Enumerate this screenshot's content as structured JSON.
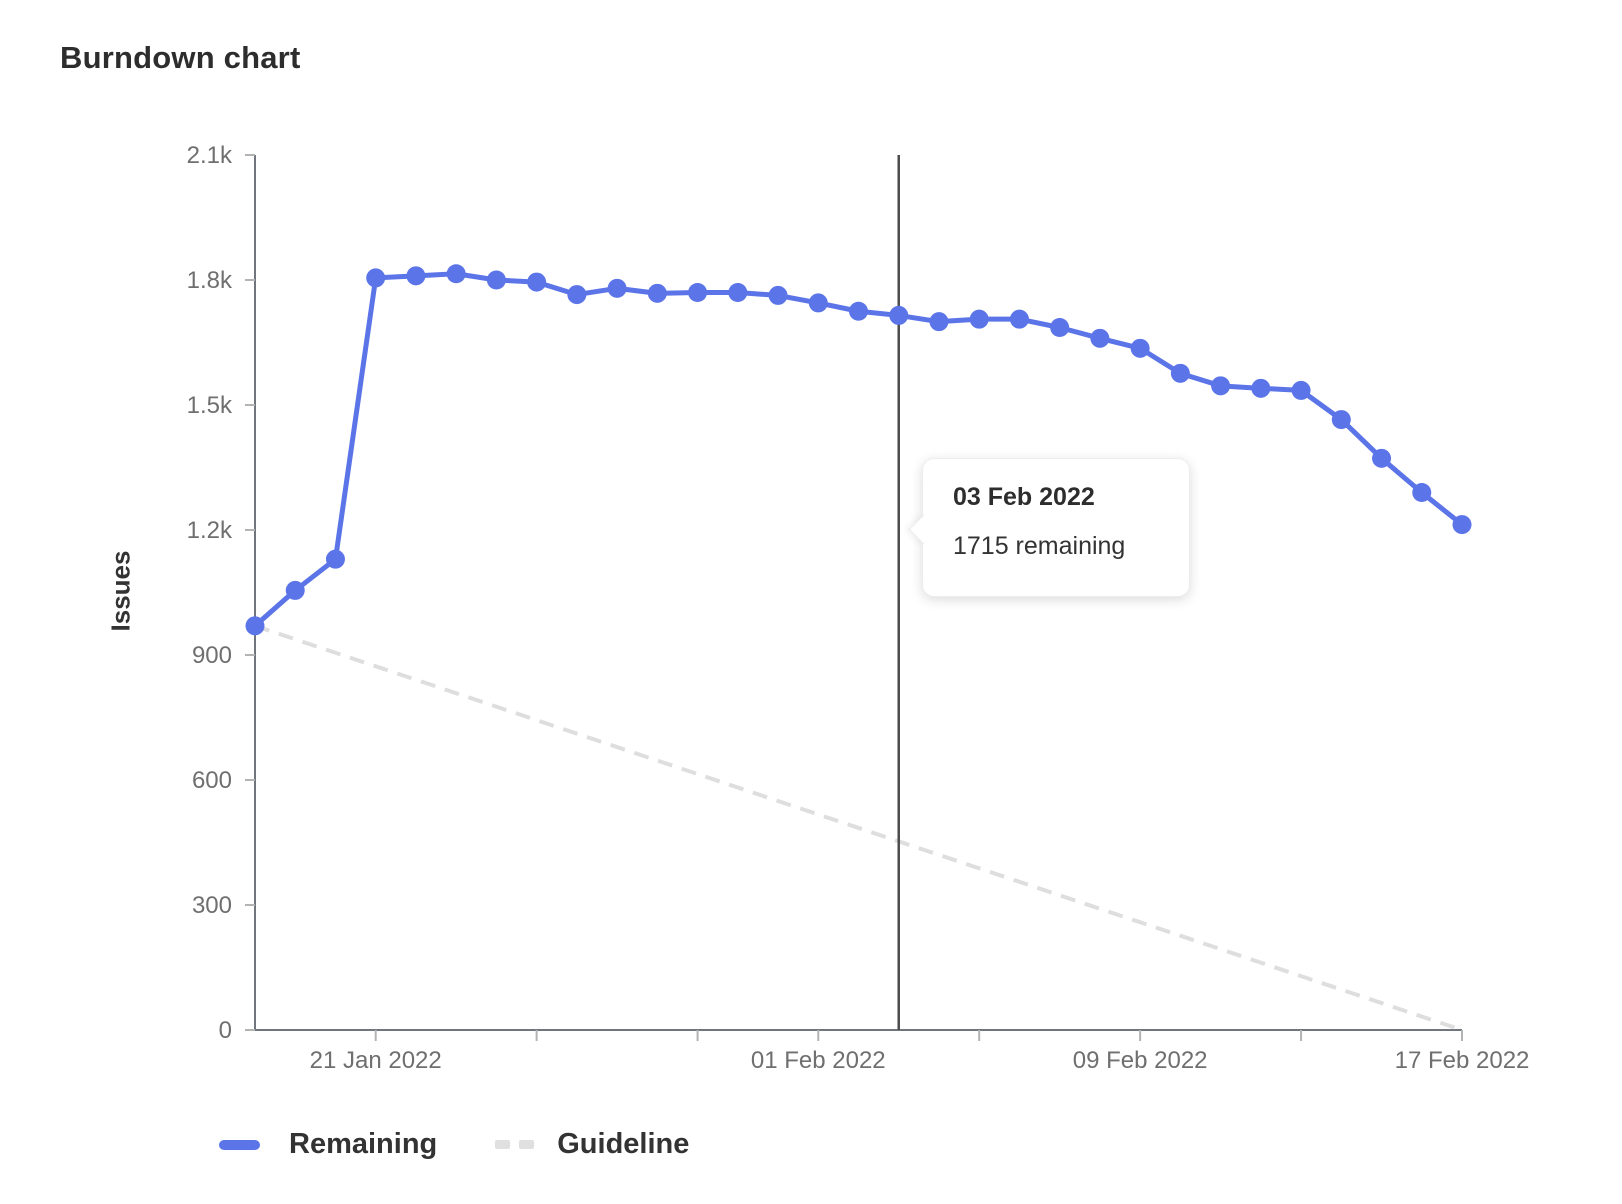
{
  "page": {
    "title": "Burndown chart"
  },
  "colors": {
    "remaining": "#5b74e8",
    "guideline": "#dedede",
    "legend_dash": "#e0e0e0",
    "axis_line": "#71757d",
    "tick_mark": "#b3b3b3",
    "tick_label": "#6f6f6f",
    "marker_line": "#4c4c4c",
    "heading_text": "#2d2d2d"
  },
  "y_axis": {
    "label": "Issues",
    "ticks": [
      {
        "value": 0,
        "label": "0"
      },
      {
        "value": 300,
        "label": "300"
      },
      {
        "value": 600,
        "label": "600"
      },
      {
        "value": 900,
        "label": "900"
      },
      {
        "value": 1200,
        "label": "1.2k"
      },
      {
        "value": 1500,
        "label": "1.5k"
      },
      {
        "value": 1800,
        "label": "1.8k"
      },
      {
        "value": 2100,
        "label": "2.1k"
      }
    ]
  },
  "x_axis": {
    "labeled_ticks": [
      {
        "day": 3,
        "label": "21 Jan 2022"
      },
      {
        "day": 14,
        "label": "01 Feb 2022"
      },
      {
        "day": 22,
        "label": "09 Feb 2022"
      },
      {
        "day": 30,
        "label": "17 Feb 2022"
      }
    ],
    "minor_tick_days": [
      7,
      11,
      18,
      26
    ]
  },
  "chart_data": {
    "type": "line",
    "title": "Burndown chart",
    "xlabel": "",
    "ylabel": "Issues",
    "ylim": [
      0,
      2100
    ],
    "x_range": [
      "18 Jan 2022",
      "17 Feb 2022"
    ],
    "grid": false,
    "legend_position": "bottom",
    "series": [
      {
        "name": "Remaining",
        "style": "solid",
        "markers": true,
        "points": [
          {
            "day": 0,
            "date": "18 Jan 2022",
            "value": 970
          },
          {
            "day": 1,
            "date": "19 Jan 2022",
            "value": 1055
          },
          {
            "day": 2,
            "date": "20 Jan 2022",
            "value": 1130
          },
          {
            "day": 3,
            "date": "21 Jan 2022",
            "value": 1805
          },
          {
            "day": 4,
            "date": "22 Jan 2022",
            "value": 1810
          },
          {
            "day": 5,
            "date": "23 Jan 2022",
            "value": 1815
          },
          {
            "day": 6,
            "date": "24 Jan 2022",
            "value": 1800
          },
          {
            "day": 7,
            "date": "25 Jan 2022",
            "value": 1795
          },
          {
            "day": 8,
            "date": "26 Jan 2022",
            "value": 1765
          },
          {
            "day": 9,
            "date": "27 Jan 2022",
            "value": 1780
          },
          {
            "day": 10,
            "date": "28 Jan 2022",
            "value": 1768
          },
          {
            "day": 11,
            "date": "29 Jan 2022",
            "value": 1770
          },
          {
            "day": 12,
            "date": "30 Jan 2022",
            "value": 1770
          },
          {
            "day": 13,
            "date": "31 Jan 2022",
            "value": 1763
          },
          {
            "day": 14,
            "date": "01 Feb 2022",
            "value": 1745
          },
          {
            "day": 15,
            "date": "02 Feb 2022",
            "value": 1725
          },
          {
            "day": 16,
            "date": "03 Feb 2022",
            "value": 1715
          },
          {
            "day": 17,
            "date": "04 Feb 2022",
            "value": 1700
          },
          {
            "day": 18,
            "date": "05 Feb 2022",
            "value": 1706
          },
          {
            "day": 19,
            "date": "06 Feb 2022",
            "value": 1706
          },
          {
            "day": 20,
            "date": "07 Feb 2022",
            "value": 1686
          },
          {
            "day": 21,
            "date": "08 Feb 2022",
            "value": 1660
          },
          {
            "day": 22,
            "date": "09 Feb 2022",
            "value": 1636
          },
          {
            "day": 23,
            "date": "10 Feb 2022",
            "value": 1576
          },
          {
            "day": 24,
            "date": "11 Feb 2022",
            "value": 1546
          },
          {
            "day": 25,
            "date": "12 Feb 2022",
            "value": 1540
          },
          {
            "day": 26,
            "date": "13 Feb 2022",
            "value": 1535
          },
          {
            "day": 27,
            "date": "14 Feb 2022",
            "value": 1465
          },
          {
            "day": 28,
            "date": "15 Feb 2022",
            "value": 1372
          },
          {
            "day": 29,
            "date": "16 Feb 2022",
            "value": 1290
          },
          {
            "day": 30,
            "date": "17 Feb 2022",
            "value": 1213
          }
        ]
      },
      {
        "name": "Guideline",
        "style": "dashed",
        "markers": false,
        "points": [
          {
            "day": 0,
            "date": "18 Jan 2022",
            "value": 970
          },
          {
            "day": 30,
            "date": "17 Feb 2022",
            "value": 0
          }
        ]
      }
    ]
  },
  "marker": {
    "date": "03 Feb 2022",
    "day_index": 16
  },
  "tooltip": {
    "title": "03 Feb 2022",
    "body": "1715 remaining"
  },
  "legend": [
    {
      "label": "Remaining"
    },
    {
      "label": "Guideline"
    }
  ]
}
